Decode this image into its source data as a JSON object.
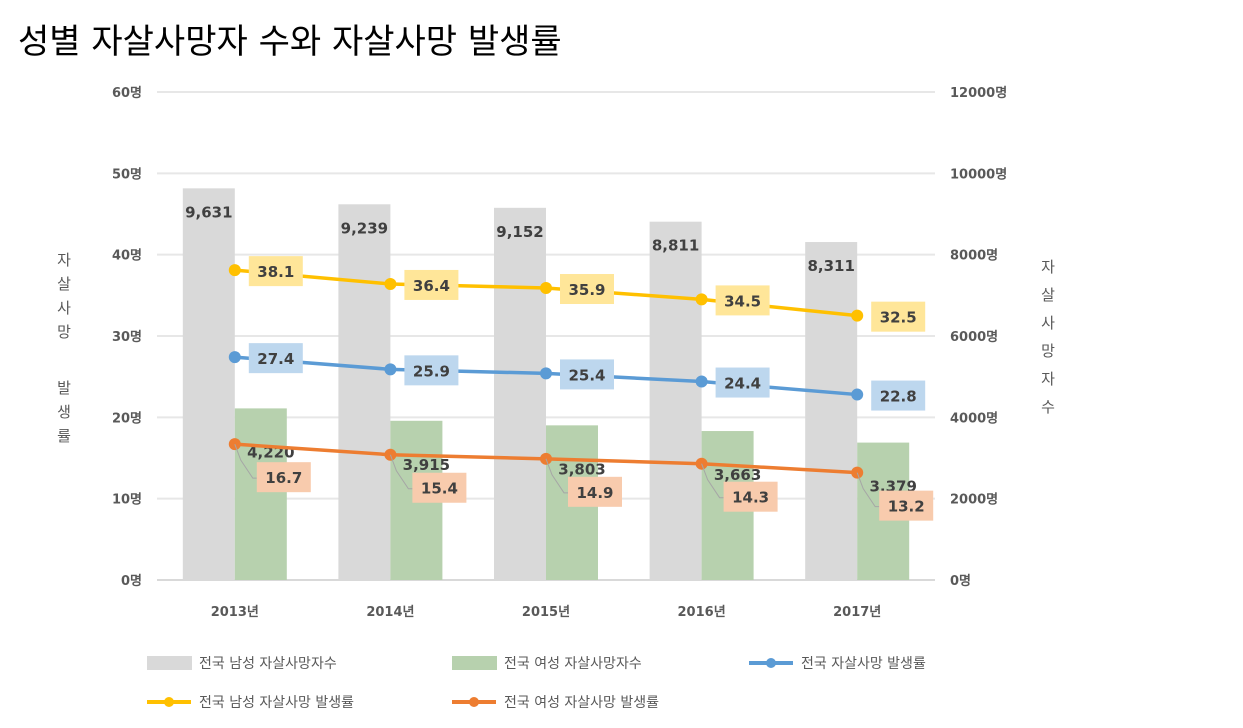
{
  "chart_data": {
    "type": "bar+line",
    "title": "성별 자살사망자 수와 자살사망 발생률",
    "categories": [
      "2013년",
      "2014년",
      "2015년",
      "2016년",
      "2017년"
    ],
    "y_left": {
      "label": "자살사망 발생률",
      "range": [
        0,
        60
      ],
      "ticks": [
        "0명",
        "10명",
        "20명",
        "30명",
        "40명",
        "50명",
        "60명"
      ]
    },
    "y_right": {
      "label": "자살사망자수",
      "range": [
        0,
        12000
      ],
      "ticks": [
        "0명",
        "2000명",
        "4000명",
        "6000명",
        "8000명",
        "10000명",
        "12000명"
      ]
    },
    "grid": true,
    "legend_position": "bottom",
    "bars": [
      {
        "name": "전국 남성 자살사망자수",
        "axis": "right",
        "color": "#d9d9d9",
        "values": [
          9631,
          9239,
          9152,
          8811,
          8311
        ],
        "labels": [
          "9,631",
          "9,239",
          "9,152",
          "8,811",
          "8,311"
        ]
      },
      {
        "name": "전국 여성 자살사망자수",
        "axis": "right",
        "color": "#b7d1ae",
        "values": [
          4220,
          3915,
          3803,
          3663,
          3379
        ],
        "labels": [
          "4,220",
          "3,915",
          "3,803",
          "3,663",
          "3,379"
        ]
      }
    ],
    "lines": [
      {
        "name": "전국 자살사망 발생률",
        "axis": "left",
        "color": "#5b9bd5",
        "label_bg": "#bdd7ee",
        "values": [
          27.4,
          25.9,
          25.4,
          24.4,
          22.8
        ],
        "labels": [
          "27.4",
          "25.9",
          "25.4",
          "24.4",
          "22.8"
        ]
      },
      {
        "name": "전국 남성 자살사망 발생률",
        "axis": "left",
        "color": "#ffc000",
        "label_bg": "#ffe699",
        "values": [
          38.1,
          36.4,
          35.9,
          34.5,
          32.5
        ],
        "labels": [
          "38.1",
          "36.4",
          "35.9",
          "34.5",
          "32.5"
        ]
      },
      {
        "name": "전국 여성 자살사망 발생률",
        "axis": "left",
        "color": "#ed7d31",
        "label_bg": "#f8cbad",
        "values": [
          16.7,
          15.4,
          14.9,
          14.3,
          13.2
        ],
        "labels": [
          "16.7",
          "15.4",
          "14.9",
          "14.3",
          "13.2"
        ]
      }
    ]
  }
}
